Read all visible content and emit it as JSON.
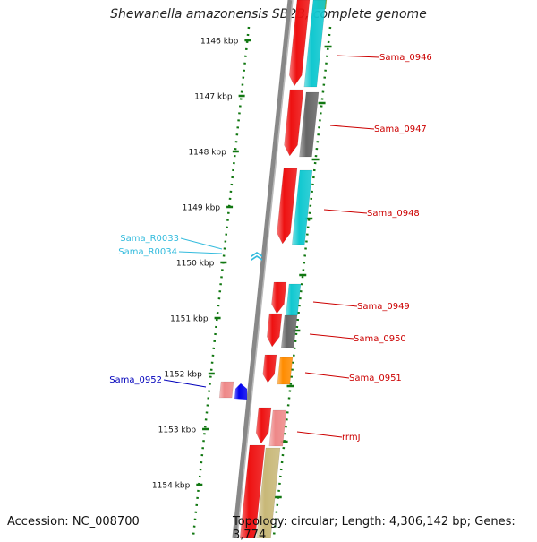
{
  "title": "Shewanella amazonensis SB2B, complete genome",
  "accession": "Accession: NC_008700",
  "summary": "Topology: circular; Length: 4,306,142 bp; Genes: 3,774",
  "ticks": [
    "1146 kbp",
    "1147 kbp",
    "1148 kbp",
    "1149 kbp",
    "1150 kbp",
    "1151 kbp",
    "1152 kbp",
    "1153 kbp",
    "1154 kbp"
  ],
  "genes": [
    {
      "label": "Sama_0946",
      "color": "#cc0000"
    },
    {
      "label": "Sama_0947",
      "color": "#cc0000"
    },
    {
      "label": "Sama_0948",
      "color": "#cc0000"
    },
    {
      "label": "Sama_R0033",
      "color": "#33bbdd"
    },
    {
      "label": "Sama_R0034",
      "color": "#33bbdd"
    },
    {
      "label": "Sama_0949",
      "color": "#cc0000"
    },
    {
      "label": "Sama_0950",
      "color": "#cc0000"
    },
    {
      "label": "Sama_0951",
      "color": "#cc0000"
    },
    {
      "label": "Sama_0952",
      "color": "#0000bb"
    },
    {
      "label": "rrmJ",
      "color": "#cc0000"
    }
  ],
  "colors": {
    "cds": "#ee1111",
    "category_cyan": "#11c8d0",
    "category_gray": "#666666",
    "category_orange": "#ff8c00",
    "category_pink": "#ee8888",
    "category_khaki": "#c8b878",
    "category_olive": "#77aa22",
    "rna": "#33bbdd",
    "reverse_cds": "#0000ee",
    "tick": "#117711",
    "backbone": "#888888"
  }
}
